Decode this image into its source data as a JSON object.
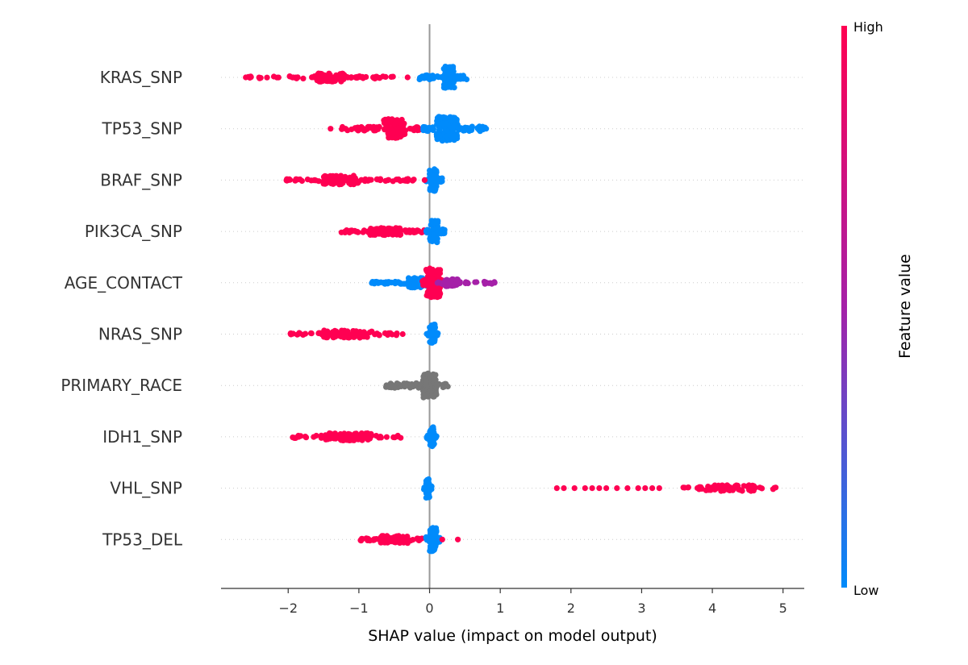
{
  "chart_data": {
    "type": "scatter",
    "subtype": "shap-beeswarm",
    "xlabel": "SHAP value (impact on model output)",
    "xlim": [
      -2.95,
      5.3
    ],
    "x_ticks": [
      -2,
      -1,
      0,
      1,
      2,
      3,
      4,
      5
    ],
    "x_tick_labels": [
      "−2",
      "−1",
      "0",
      "1",
      "2",
      "3",
      "4",
      "5"
    ],
    "colorbar": {
      "title": "Feature value",
      "high_label": "High",
      "low_label": "Low",
      "high_color": "#ff0052",
      "mid_color": "#a520a8",
      "low_color": "#008bfb"
    },
    "grid": false,
    "features": [
      {
        "name": "KRAS_SNP",
        "clusters": [
          {
            "color": "high",
            "min": -2.6,
            "max": -0.3,
            "core": [
              -1.6,
              -1.2
            ],
            "spread": 0.18,
            "n": 140
          },
          {
            "color": "low",
            "min": -0.15,
            "max": 0.55,
            "core": [
              0.2,
              0.35
            ],
            "spread": 0.45,
            "n": 120
          }
        ],
        "outliers": [
          {
            "x": -2.6,
            "color": "high"
          }
        ]
      },
      {
        "name": "TP53_SNP",
        "clusters": [
          {
            "color": "high",
            "min": -1.25,
            "max": -0.1,
            "core": [
              -0.65,
              -0.35
            ],
            "spread": 0.4,
            "n": 140
          },
          {
            "color": "low",
            "min": -0.1,
            "max": 0.8,
            "core": [
              0.1,
              0.4
            ],
            "spread": 0.5,
            "n": 150
          }
        ],
        "outliers": [
          {
            "x": -1.4,
            "color": "high"
          },
          {
            "x": 0.8,
            "color": "low"
          }
        ]
      },
      {
        "name": "BRAF_SNP",
        "clusters": [
          {
            "color": "high",
            "min": -2.05,
            "max": -0.2,
            "core": [
              -1.5,
              -1.0
            ],
            "spread": 0.18,
            "n": 130
          },
          {
            "color": "low",
            "min": -0.05,
            "max": 0.18,
            "core": [
              0.0,
              0.1
            ],
            "spread": 0.45,
            "n": 70
          }
        ],
        "outliers": [
          {
            "x": -0.07,
            "color": "high"
          }
        ]
      },
      {
        "name": "PIK3CA_SNP",
        "clusters": [
          {
            "color": "high",
            "min": -1.25,
            "max": -0.05,
            "core": [
              -0.9,
              -0.4
            ],
            "spread": 0.15,
            "n": 110
          },
          {
            "color": "low",
            "min": -0.05,
            "max": 0.22,
            "core": [
              0.0,
              0.12
            ],
            "spread": 0.45,
            "n": 70
          }
        ],
        "outliers": []
      },
      {
        "name": "AGE_CONTACT",
        "clusters": [
          {
            "color": "low",
            "min": -0.82,
            "max": 0.2,
            "core": [
              -0.3,
              0.0
            ],
            "spread": 0.2,
            "n": 110
          },
          {
            "color": "high",
            "min": -0.1,
            "max": 0.3,
            "core": [
              -0.05,
              0.15
            ],
            "spread": 0.6,
            "n": 150
          },
          {
            "color": "mid",
            "min": 0.1,
            "max": 0.92,
            "core": [
              0.2,
              0.4
            ],
            "spread": 0.15,
            "n": 70
          }
        ],
        "outliers": [
          {
            "x": 0.92,
            "color": "mid"
          }
        ]
      },
      {
        "name": "NRAS_SNP",
        "clusters": [
          {
            "color": "high",
            "min": -2.0,
            "max": -0.45,
            "core": [
              -1.5,
              -0.8
            ],
            "spread": 0.15,
            "n": 120
          },
          {
            "color": "low",
            "min": -0.05,
            "max": 0.12,
            "core": [
              0.0,
              0.08
            ],
            "spread": 0.4,
            "n": 60
          }
        ],
        "outliers": [
          {
            "x": -0.38,
            "color": "high"
          }
        ]
      },
      {
        "name": "PRIMARY_RACE",
        "clusters": [
          {
            "color": "gray",
            "min": -0.62,
            "max": 0.3,
            "core": [
              -0.1,
              0.1
            ],
            "spread": 0.5,
            "n": 170
          }
        ],
        "outliers": []
      },
      {
        "name": "IDH1_SNP",
        "clusters": [
          {
            "color": "high",
            "min": -1.95,
            "max": -0.35,
            "core": [
              -1.5,
              -0.8
            ],
            "spread": 0.15,
            "n": 120
          },
          {
            "color": "low",
            "min": -0.05,
            "max": 0.1,
            "core": [
              0.0,
              0.07
            ],
            "spread": 0.4,
            "n": 60
          }
        ],
        "outliers": []
      },
      {
        "name": "VHL_SNP",
        "clusters": [
          {
            "color": "low",
            "min": -0.08,
            "max": 0.03,
            "core": [
              -0.05,
              0.0
            ],
            "spread": 0.4,
            "n": 50
          },
          {
            "color": "high",
            "min": 3.5,
            "max": 4.95,
            "core": [
              3.9,
              4.6
            ],
            "spread": 0.12,
            "n": 80
          }
        ],
        "outliers": [
          {
            "x": 1.8,
            "color": "high"
          },
          {
            "x": 1.9,
            "color": "high"
          },
          {
            "x": 2.05,
            "color": "high"
          },
          {
            "x": 2.2,
            "color": "high"
          },
          {
            "x": 2.3,
            "color": "high"
          },
          {
            "x": 2.4,
            "color": "high"
          },
          {
            "x": 2.5,
            "color": "high"
          },
          {
            "x": 2.65,
            "color": "high"
          },
          {
            "x": 2.8,
            "color": "high"
          },
          {
            "x": 2.95,
            "color": "high"
          },
          {
            "x": 3.05,
            "color": "high"
          },
          {
            "x": 3.15,
            "color": "high"
          },
          {
            "x": 3.25,
            "color": "high"
          }
        ]
      },
      {
        "name": "TP53_DEL",
        "clusters": [
          {
            "color": "high",
            "min": -1.0,
            "max": -0.1,
            "core": [
              -0.7,
              -0.3
            ],
            "spread": 0.15,
            "n": 110
          },
          {
            "color": "low",
            "min": -0.05,
            "max": 0.15,
            "core": [
              0.0,
              0.1
            ],
            "spread": 0.5,
            "n": 70
          }
        ],
        "outliers": [
          {
            "x": 0.18,
            "color": "high"
          },
          {
            "x": 0.4,
            "color": "high"
          }
        ]
      }
    ],
    "colors": {
      "high": "#ff0052",
      "low": "#008bfb",
      "mid": "#a520a8",
      "gray": "#777777"
    }
  }
}
